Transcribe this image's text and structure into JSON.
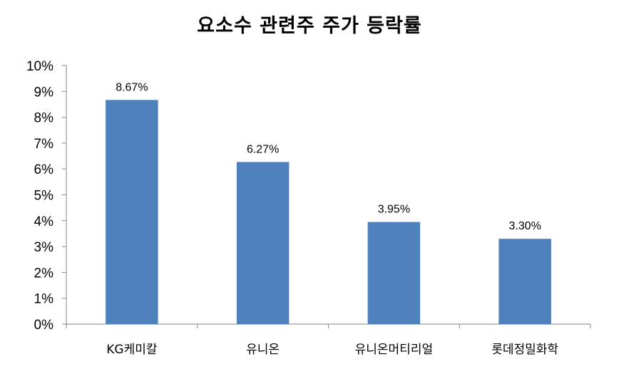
{
  "chart_data": {
    "type": "bar",
    "title": "요소수 관련주 주가 등락률",
    "categories": [
      "KG케미칼",
      "유니온",
      "유니온머티리얼",
      "롯데정밀화학"
    ],
    "values": [
      8.67,
      6.27,
      3.95,
      3.3
    ],
    "data_labels": [
      "8.67%",
      "6.27%",
      "3.95%",
      "3.30%"
    ],
    "yticks": [
      "0%",
      "1%",
      "2%",
      "3%",
      "4%",
      "5%",
      "6%",
      "7%",
      "8%",
      "9%",
      "10%"
    ],
    "ylim": [
      0,
      10
    ],
    "grid": false,
    "legend": "none",
    "bar_color": "#4F81BD"
  }
}
